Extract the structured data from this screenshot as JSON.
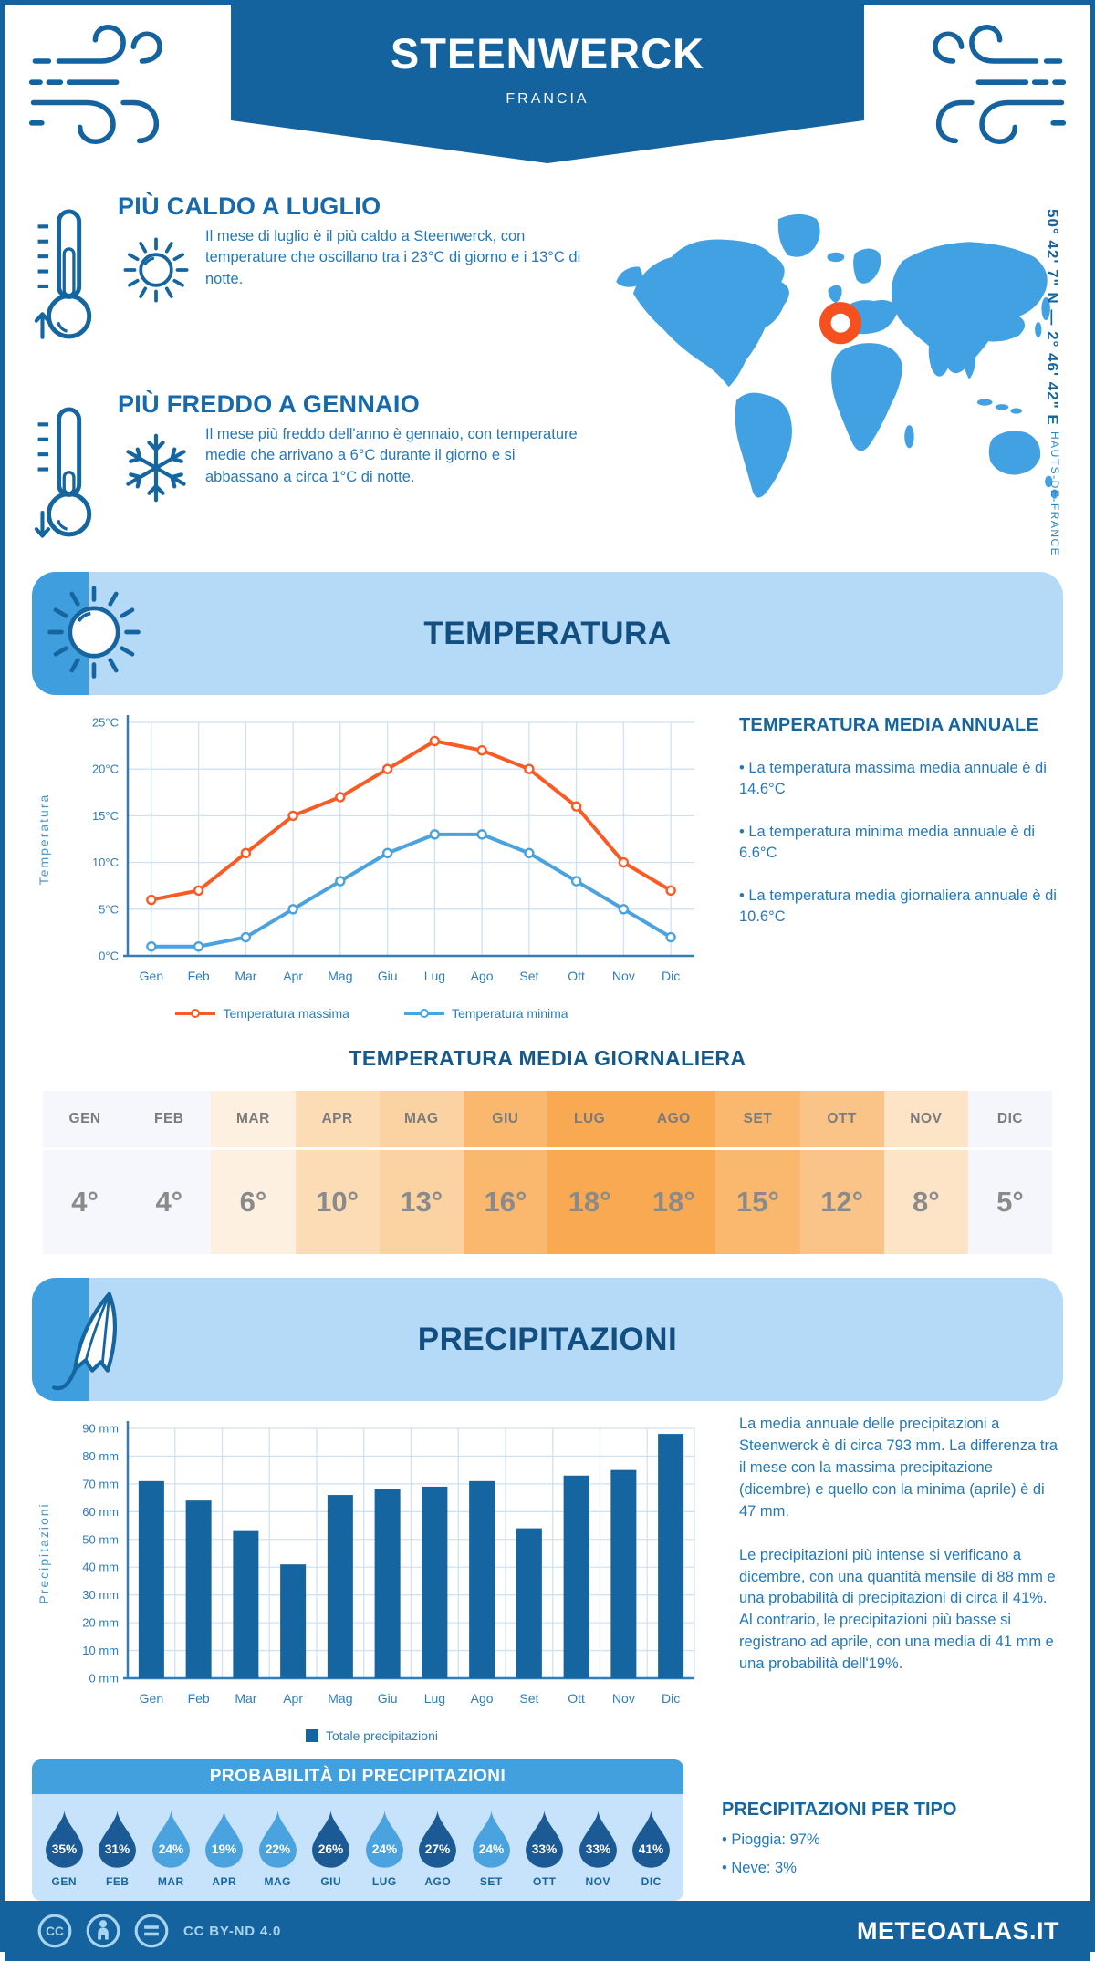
{
  "header": {
    "title": "STEENWERCK",
    "subtitle": "FRANCIA"
  },
  "highlights": [
    {
      "title": "PIÙ CALDO A LUGLIO",
      "text": "Il mese di luglio è il più caldo a Steenwerck, con temperature che oscillano tra i 23°C di giorno e i 13°C di notte."
    },
    {
      "title": "PIÙ FREDDO A GENNAIO",
      "text": "Il mese più freddo dell'anno è gennaio, con temperature medie che arrivano a 6°C durante il giorno e si abbassano a circa 1°C di notte."
    }
  ],
  "map": {
    "coordinates": "50° 42' 7\" N — 2° 46' 42\" E",
    "region": "HAUTS-DE-FRANCE",
    "land_color": "#41a1e3",
    "marker_color": "#f4511e"
  },
  "section_titles": {
    "temperature": "TEMPERATURA",
    "precipitation": "PRECIPITAZIONI"
  },
  "chart_data": [
    {
      "type": "line",
      "title": "Temperatura",
      "categories": [
        "Gen",
        "Feb",
        "Mar",
        "Apr",
        "Mag",
        "Giu",
        "Lug",
        "Ago",
        "Set",
        "Ott",
        "Nov",
        "Dic"
      ],
      "series": [
        {
          "name": "Temperatura massima",
          "color": "#f95b25",
          "values": [
            6,
            7,
            11,
            15,
            17,
            20,
            23,
            22,
            20,
            16,
            10,
            7
          ]
        },
        {
          "name": "Temperatura minima",
          "color": "#4aa2de",
          "values": [
            1,
            1,
            2,
            5,
            8,
            11,
            13,
            13,
            11,
            8,
            5,
            2
          ]
        }
      ],
      "ylabel": "Temperatura",
      "ylim": [
        0,
        25
      ],
      "ytick_step": 5,
      "ytick_suffix": "°C",
      "grid": true,
      "legend_position": "bottom"
    },
    {
      "type": "bar",
      "title": "Precipitazioni",
      "categories": [
        "Gen",
        "Feb",
        "Mar",
        "Apr",
        "Mag",
        "Giu",
        "Lug",
        "Ago",
        "Set",
        "Ott",
        "Nov",
        "Dic"
      ],
      "series": [
        {
          "name": "Totale precipitazioni",
          "color": "#1565a0",
          "values": [
            71,
            64,
            53,
            41,
            66,
            68,
            69,
            71,
            54,
            73,
            75,
            88
          ]
        }
      ],
      "ylabel": "Precipitazioni",
      "ylim": [
        0,
        90
      ],
      "ytick_step": 10,
      "ytick_suffix": " mm",
      "grid": true,
      "legend_position": "bottom"
    }
  ],
  "annual_summary": {
    "heading": "TEMPERATURA MEDIA ANNUALE",
    "bullets": [
      "La temperatura massima media annuale è di 14.6°C",
      "La temperatura minima media annuale è di 6.6°C",
      "La temperatura media giornaliera annuale è di 10.6°C"
    ]
  },
  "daily_table": {
    "heading": "TEMPERATURA MEDIA GIORNALIERA",
    "months": [
      "GEN",
      "FEB",
      "MAR",
      "APR",
      "MAG",
      "GIU",
      "LUG",
      "AGO",
      "SET",
      "OTT",
      "NOV",
      "DIC"
    ],
    "values": [
      "4°",
      "4°",
      "6°",
      "10°",
      "13°",
      "16°",
      "18°",
      "18°",
      "15°",
      "12°",
      "8°",
      "5°"
    ],
    "cell_colors": [
      "#f6f7fc",
      "#f6f7fc",
      "#fdf0e0",
      "#fcdcb4",
      "#fbd2a2",
      "#f9b86d",
      "#f8a952",
      "#f8a952",
      "#f9b86d",
      "#fac488",
      "#fde4c6",
      "#f5f6fb"
    ]
  },
  "precip_text": {
    "paragraphs": [
      "La media annuale delle precipitazioni a Steenwerck è di circa 793 mm. La differenza tra il mese con la massima precipitazione (dicembre) e quello con la minima (aprile) è di 47 mm.",
      "Le precipitazioni più intense si verificano a dicembre, con una quantità mensile di 88 mm e una probabilità di precipitazioni di circa il 41%. Al contrario, le precipitazioni più basse si registrano ad aprile, con una media di 41 mm e una probabilità dell'19%."
    ]
  },
  "probability": {
    "heading": "PROBABILITÀ DI PRECIPITAZIONI",
    "months": [
      "GEN",
      "FEB",
      "MAR",
      "APR",
      "MAG",
      "GIU",
      "LUG",
      "AGO",
      "SET",
      "OTT",
      "NOV",
      "DIC"
    ],
    "values": [
      "35%",
      "31%",
      "24%",
      "19%",
      "22%",
      "26%",
      "24%",
      "27%",
      "24%",
      "33%",
      "33%",
      "41%"
    ],
    "dark": [
      true,
      true,
      false,
      false,
      false,
      true,
      false,
      true,
      false,
      true,
      true,
      true
    ],
    "drop_dark_color": "#1b5a94",
    "drop_light_color": "#4aa2de"
  },
  "precip_type": {
    "heading": "PRECIPITAZIONI PER TIPO",
    "bullets": [
      "Pioggia: 97%",
      "Neve: 3%"
    ]
  },
  "footer": {
    "license": "CC BY-ND 4.0",
    "site": "METEOATLAS.IT"
  }
}
